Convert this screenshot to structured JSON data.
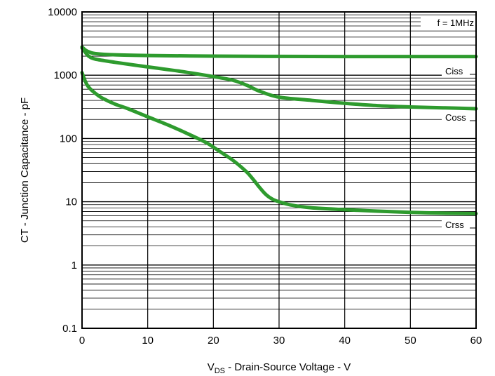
{
  "chart_data": {
    "type": "line",
    "x_scale": "linear",
    "y_scale": "log",
    "xlim": [
      0,
      60
    ],
    "ylim": [
      0.1,
      10000
    ],
    "x_ticks": [
      "0",
      "10",
      "20",
      "30",
      "40",
      "50",
      "60"
    ],
    "y_ticks": [
      "0.1",
      "1",
      "10",
      "100",
      "1000",
      "10000"
    ],
    "x_tick_values": [
      0,
      10,
      20,
      30,
      40,
      50,
      60
    ],
    "y_tick_values": [
      0.1,
      1,
      10,
      100,
      1000,
      10000
    ],
    "xlabel_main": "V",
    "xlabel_sub": "DS",
    "xlabel_rest": " - Drain-Source Voltage - V",
    "ylabel": "CT - Junction Capacitance - pF",
    "annotation": "f = 1MHz",
    "grid": true,
    "line_color": "#2e9b2e",
    "series": [
      {
        "name": "Ciss",
        "x": [
          0,
          0.5,
          1,
          2,
          5,
          10,
          20,
          30,
          40,
          50,
          60
        ],
        "y": [
          2800,
          2500,
          2350,
          2200,
          2100,
          2050,
          2000,
          1980,
          1970,
          1970,
          1970
        ]
      },
      {
        "name": "Coss",
        "x": [
          0,
          0.5,
          1,
          2,
          5,
          10,
          15,
          20,
          23,
          25,
          27,
          30,
          35,
          40,
          45,
          50,
          55,
          60
        ],
        "y": [
          2700,
          2300,
          2000,
          1800,
          1600,
          1350,
          1150,
          950,
          830,
          700,
          560,
          450,
          400,
          360,
          330,
          315,
          305,
          295
        ]
      },
      {
        "name": "Crss",
        "x": [
          0,
          0.5,
          1,
          2,
          3,
          5,
          7,
          10,
          13,
          16,
          19,
          21,
          23,
          25,
          26,
          27,
          28,
          29,
          30,
          32,
          35,
          40,
          45,
          50,
          55,
          60
        ],
        "y": [
          1100,
          800,
          650,
          520,
          440,
          350,
          295,
          220,
          165,
          120,
          85,
          62,
          45,
          30,
          23,
          17,
          13,
          11,
          10,
          8.8,
          8,
          7.5,
          7.1,
          6.8,
          6.6,
          6.5
        ]
      }
    ]
  }
}
